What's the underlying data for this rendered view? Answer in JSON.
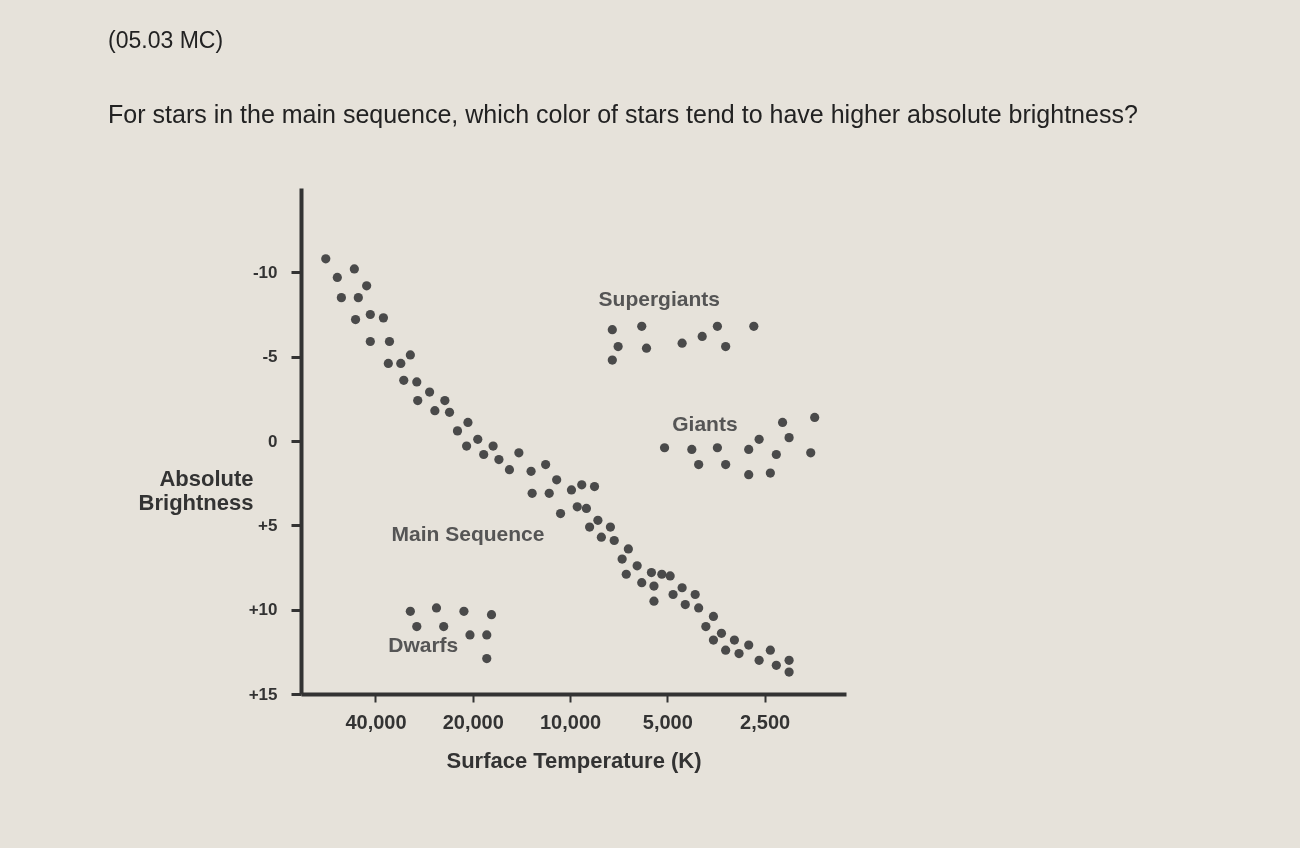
{
  "chart_data": {
    "type": "scatter",
    "title": "(05.03 MC)",
    "subtitle": "For stars in the main sequence, which color of stars tend to have higher absolute brightness?",
    "xlabel": "Surface Temperature (K)",
    "ylabel": "Absolute Brightness",
    "log": "x",
    "grid": false,
    "marker": "circle",
    "xlim": [
      68000,
      1400
    ],
    "ylim": [
      15,
      -15
    ],
    "xticks": [
      {
        "value": 40000,
        "label": "40,000"
      },
      {
        "value": 20000,
        "label": "20,000"
      },
      {
        "value": 10000,
        "label": "10,000"
      },
      {
        "value": 5000,
        "label": "5,000"
      },
      {
        "value": 2500,
        "label": "2,500"
      }
    ],
    "yticks": [
      -10,
      -5,
      0,
      {
        "value": 5,
        "label": "+5"
      },
      {
        "value": 10,
        "label": "+10"
      },
      {
        "value": 15,
        "label": "+15"
      }
    ],
    "series": [
      {
        "name": "Main Sequence",
        "color": "#4a4a4a",
        "x": [
          57000,
          46500,
          52500,
          42600,
          51000,
          45200,
          46100,
          41500,
          37800,
          41500,
          36200,
          31200,
          36500,
          33400,
          32700,
          29800,
          27200,
          29600,
          24400,
          26200,
          23600,
          20700,
          22300,
          19300,
          20900,
          17300,
          18500,
          16600,
          14400,
          15400,
          13200,
          11900,
          11000,
          9900,
          9200,
          8400,
          13100,
          11600,
          10700,
          9500,
          8900,
          8200,
          7500,
          8700,
          8000,
          7300,
          6600,
          6900,
          6200,
          6700,
          5600,
          5200,
          4900,
          6000,
          5500,
          4500,
          4100,
          4800,
          4400,
          5500,
          4000,
          3600,
          3800,
          3400,
          3600,
          3100,
          2800,
          3300,
          3000,
          2400,
          2600,
          2300,
          2100,
          2100
        ],
        "values": [
          -10.8,
          -10.2,
          -9.7,
          -9.2,
          -8.5,
          -8.5,
          -7.2,
          -7.5,
          -7.3,
          -5.9,
          -5.9,
          -5.1,
          -4.6,
          -4.6,
          -3.6,
          -3.5,
          -2.9,
          -2.4,
          -2.4,
          -1.8,
          -1.7,
          -1.1,
          -0.6,
          -0.1,
          0.3,
          0.3,
          0.8,
          1.1,
          0.7,
          1.7,
          1.8,
          1.4,
          2.3,
          2.9,
          2.6,
          2.7,
          3.1,
          3.1,
          4.3,
          3.9,
          4.0,
          4.7,
          5.1,
          5.1,
          5.7,
          5.9,
          6.4,
          7.0,
          7.4,
          7.9,
          7.8,
          7.9,
          8.0,
          8.4,
          8.6,
          8.7,
          9.1,
          9.1,
          9.7,
          9.5,
          9.9,
          10.4,
          11.0,
          11.4,
          11.8,
          11.8,
          12.1,
          12.4,
          12.6,
          12.4,
          13.0,
          13.3,
          13.0,
          13.7
        ]
      },
      {
        "name": "Supergiants",
        "color": "#4a4a4a",
        "x": [
          7400,
          6000,
          7100,
          7400,
          5800,
          4500,
          3900,
          3500,
          3300,
          2700
        ],
        "values": [
          -6.6,
          -6.8,
          -5.6,
          -4.8,
          -5.5,
          -5.8,
          -6.2,
          -6.8,
          -5.6,
          -6.8
        ]
      },
      {
        "name": "Giants",
        "color": "#4a4a4a",
        "x": [
          5100,
          4200,
          3500,
          2800,
          2600,
          2300,
          2200,
          2100,
          1750,
          1800,
          4000,
          3300,
          2800,
          2400
        ],
        "values": [
          0.4,
          0.5,
          0.4,
          0.5,
          -0.1,
          0.8,
          -1.1,
          -0.2,
          -1.4,
          0.7,
          1.4,
          1.4,
          2.0,
          1.9
        ]
      },
      {
        "name": "Dwarfs",
        "color": "#4a4a4a",
        "x": [
          31200,
          25900,
          21300,
          17500,
          29800,
          24600,
          20400,
          18100,
          18100
        ],
        "values": [
          10.1,
          9.9,
          10.1,
          10.3,
          11.0,
          11.0,
          11.5,
          11.5,
          12.9
        ]
      }
    ]
  }
}
